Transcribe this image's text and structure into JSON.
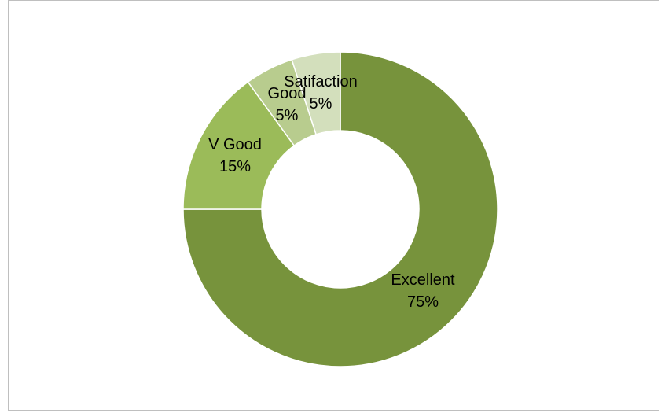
{
  "chart_data": {
    "type": "pie",
    "style": "doughnut",
    "categories": [
      "Excellent",
      "V Good",
      "Good",
      "Satifaction"
    ],
    "values": [
      75,
      15,
      5,
      5
    ],
    "labels": [
      "75%",
      "15%",
      "5%",
      "5%"
    ],
    "colors": [
      "#77933c",
      "#9bbb59",
      "#b8cc8e",
      "#d3dfbc"
    ],
    "title": "",
    "legend": "none"
  }
}
